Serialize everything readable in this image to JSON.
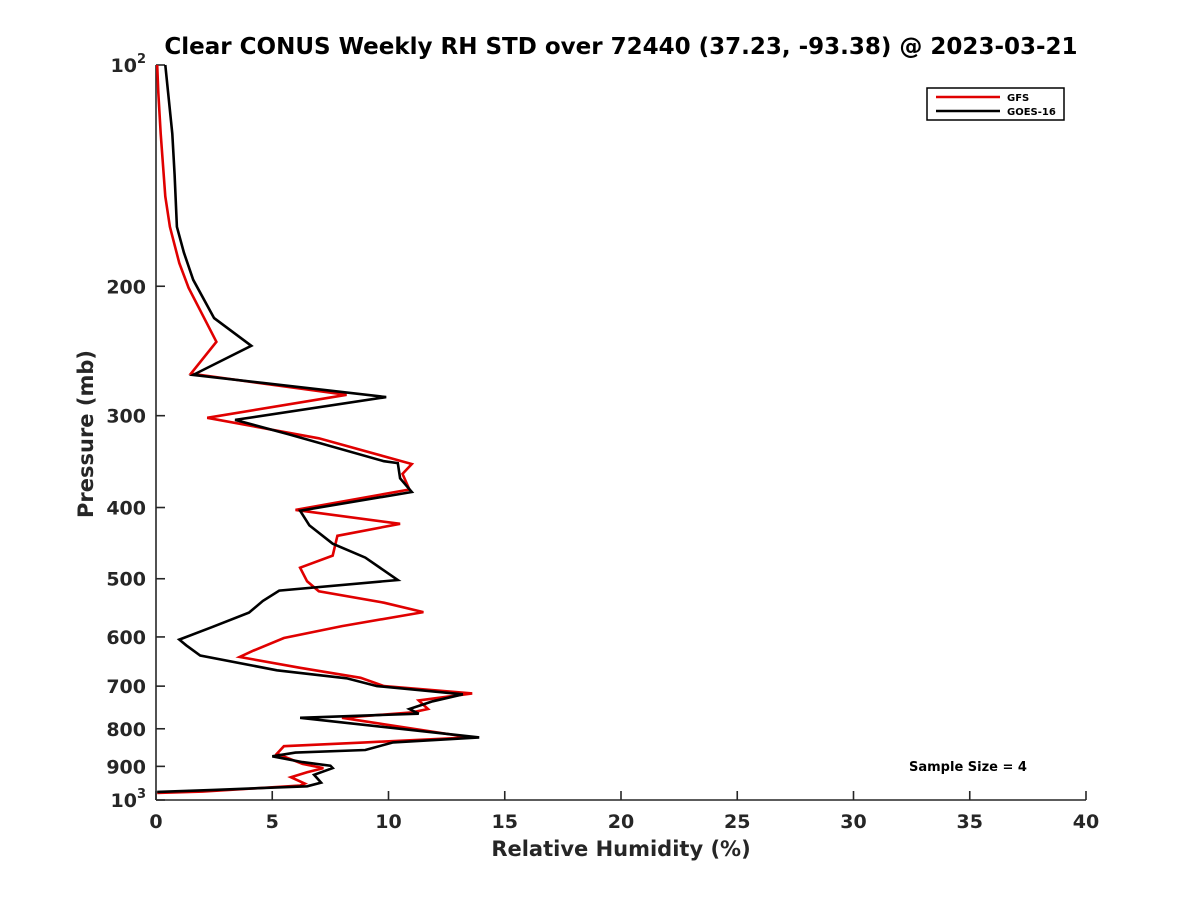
{
  "chart_data": {
    "type": "line",
    "title": "Clear CONUS Weekly RH STD over 72440 (37.23, -93.38) @ 2023-03-21",
    "xlabel": "Relative Humidity (%)",
    "ylabel": "Pressure (mb)",
    "xlim": [
      0,
      40
    ],
    "ylim": [
      100,
      1000
    ],
    "yscale": "log",
    "y_reversed": true,
    "grid": false,
    "legend_position": "top-right",
    "xticks": [
      0,
      5,
      10,
      15,
      20,
      25,
      30,
      35,
      40
    ],
    "yticks": [
      {
        "value": 100,
        "base": "10",
        "exp": "2"
      },
      {
        "value": 200,
        "label": "200"
      },
      {
        "value": 300,
        "label": "300"
      },
      {
        "value": 400,
        "label": "400"
      },
      {
        "value": 500,
        "label": "500"
      },
      {
        "value": 600,
        "label": "600"
      },
      {
        "value": 700,
        "label": "700"
      },
      {
        "value": 800,
        "label": "800"
      },
      {
        "value": 900,
        "label": "900"
      },
      {
        "value": 1000,
        "base": "10",
        "exp": "3"
      }
    ],
    "annotation": "Sample Size = 4",
    "series": [
      {
        "name": "GFS",
        "color": "#e00000",
        "points": [
          [
            0.05,
            100
          ],
          [
            0.1,
            109
          ],
          [
            0.2,
            124
          ],
          [
            0.4,
            151
          ],
          [
            0.6,
            166
          ],
          [
            1.0,
            186
          ],
          [
            1.4,
            201
          ],
          [
            2.6,
            238
          ],
          [
            1.5,
            263
          ],
          [
            8.2,
            281
          ],
          [
            2.2,
            302
          ],
          [
            7.0,
            322
          ],
          [
            11.0,
            349
          ],
          [
            10.6,
            360
          ],
          [
            10.9,
            378
          ],
          [
            6.0,
            403
          ],
          [
            10.5,
            421
          ],
          [
            7.8,
            437
          ],
          [
            7.6,
            465
          ],
          [
            6.2,
            483
          ],
          [
            6.5,
            504
          ],
          [
            7.0,
            520
          ],
          [
            9.8,
            539
          ],
          [
            11.5,
            555
          ],
          [
            8.0,
            580
          ],
          [
            5.5,
            602
          ],
          [
            4.2,
            626
          ],
          [
            3.6,
            639
          ],
          [
            6.2,
            661
          ],
          [
            8.8,
            682
          ],
          [
            9.8,
            700
          ],
          [
            13.6,
            716
          ],
          [
            11.3,
            732
          ],
          [
            11.7,
            752
          ],
          [
            11.0,
            760
          ],
          [
            8.0,
            773
          ],
          [
            13.5,
            822
          ],
          [
            9.0,
            835
          ],
          [
            5.5,
            845
          ],
          [
            5.2,
            865
          ],
          [
            6.3,
            893
          ],
          [
            7.2,
            905
          ],
          [
            6.5,
            917
          ],
          [
            5.8,
            931
          ],
          [
            6.4,
            950
          ],
          [
            6.2,
            956
          ],
          [
            2.0,
            974
          ],
          [
            0.05,
            978
          ]
        ]
      },
      {
        "name": "GOES-16",
        "color": "#000000",
        "points": [
          [
            0.4,
            100
          ],
          [
            0.7,
            124
          ],
          [
            0.8,
            141
          ],
          [
            0.9,
            166
          ],
          [
            1.2,
            180
          ],
          [
            1.6,
            196
          ],
          [
            2.5,
            221
          ],
          [
            4.1,
            241
          ],
          [
            1.6,
            264
          ],
          [
            9.9,
            283
          ],
          [
            3.4,
            304
          ],
          [
            5.7,
            318
          ],
          [
            9.8,
            346
          ],
          [
            10.4,
            348
          ],
          [
            10.5,
            365
          ],
          [
            11.0,
            381
          ],
          [
            6.2,
            404
          ],
          [
            6.6,
            423
          ],
          [
            7.6,
            448
          ],
          [
            9.0,
            468
          ],
          [
            10.4,
            502
          ],
          [
            5.3,
            519
          ],
          [
            4.6,
            536
          ],
          [
            4.0,
            556
          ],
          [
            2.4,
            582
          ],
          [
            1.0,
            605
          ],
          [
            1.3,
            616
          ],
          [
            1.9,
            636
          ],
          [
            5.2,
            666
          ],
          [
            8.2,
            683
          ],
          [
            9.5,
            700
          ],
          [
            13.2,
            718
          ],
          [
            11.9,
            734
          ],
          [
            10.9,
            752
          ],
          [
            11.3,
            763
          ],
          [
            6.2,
            773
          ],
          [
            13.9,
            822
          ],
          [
            10.2,
            835
          ],
          [
            9.0,
            855
          ],
          [
            6.0,
            862
          ],
          [
            5.0,
            872
          ],
          [
            6.3,
            888
          ],
          [
            7.5,
            898
          ],
          [
            7.6,
            905
          ],
          [
            6.8,
            924
          ],
          [
            7.1,
            947
          ],
          [
            6.5,
            958
          ],
          [
            2.5,
            969
          ],
          [
            0.05,
            975
          ]
        ]
      }
    ]
  }
}
